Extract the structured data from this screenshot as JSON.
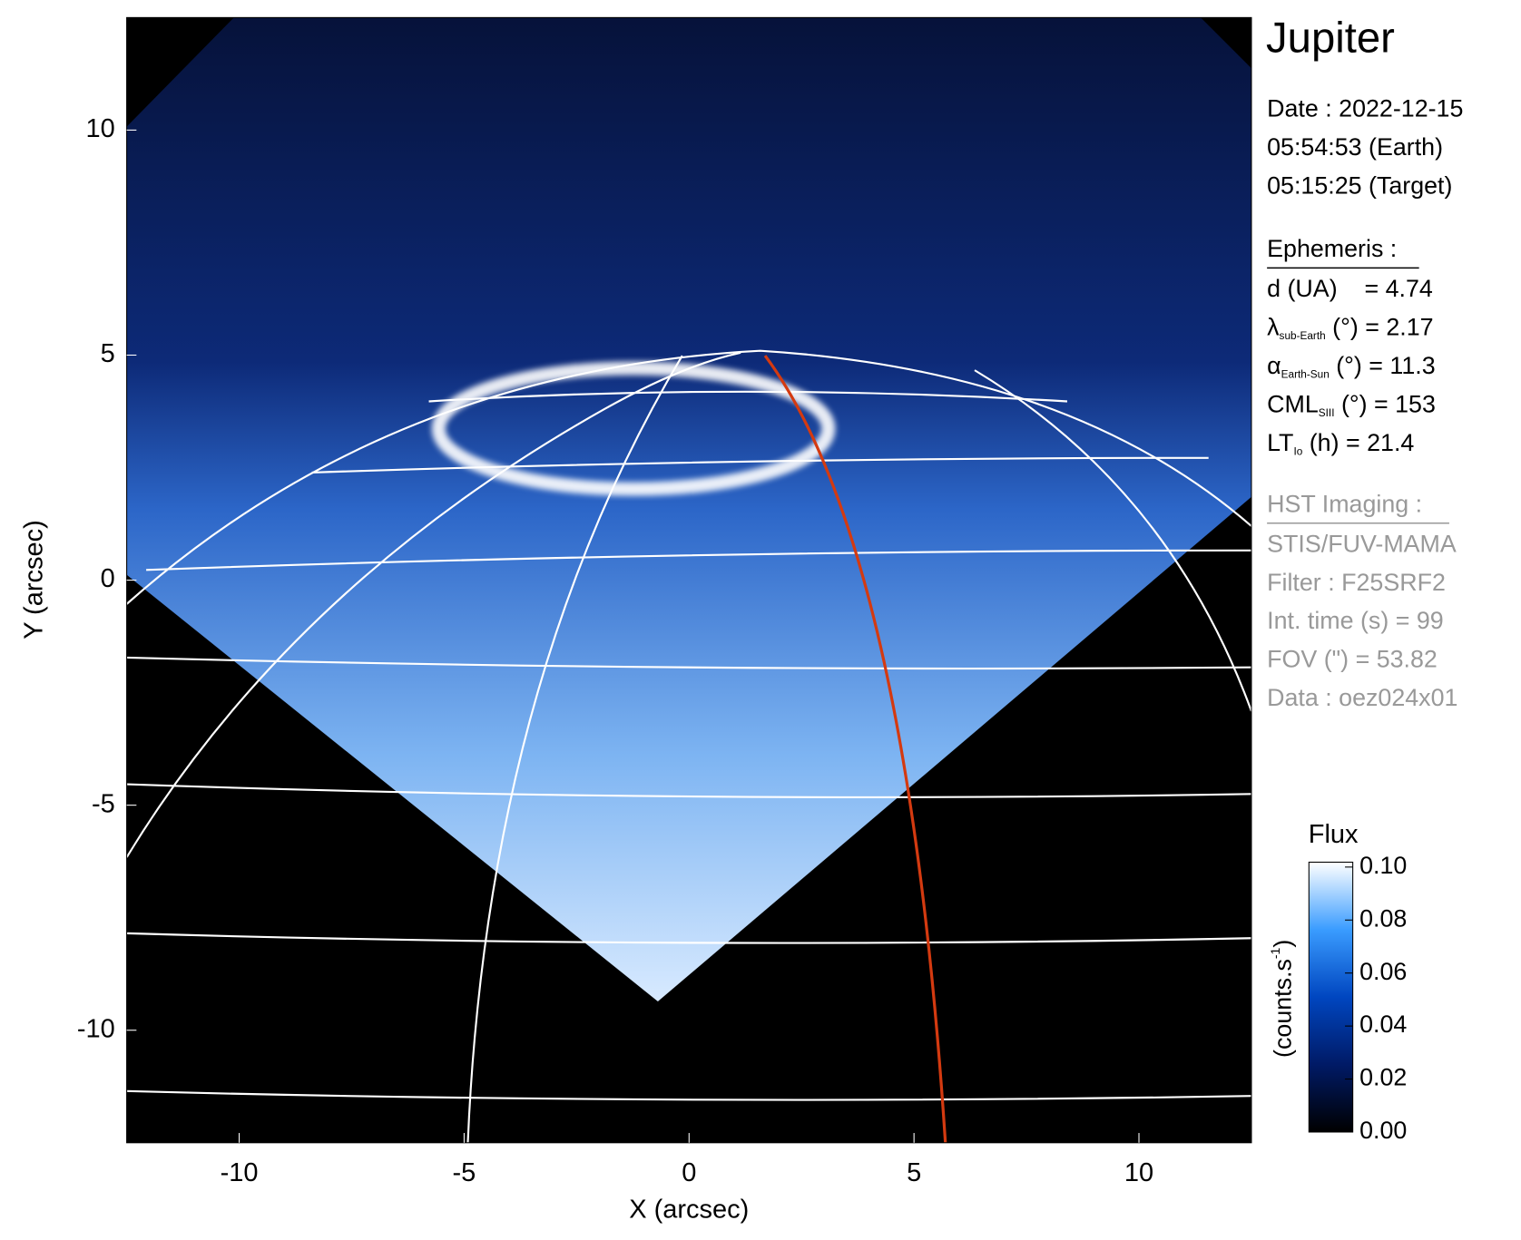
{
  "chart_data": {
    "type": "image",
    "title": "Jupiter",
    "xlabel": "X (arcsec)",
    "ylabel": "Y (arcsec)",
    "xlim": [
      -12.5,
      12.5
    ],
    "ylim": [
      -12.5,
      12.5
    ],
    "xticks": [
      -10,
      -5,
      0,
      5,
      10
    ],
    "yticks": [
      -10,
      -5,
      0,
      5,
      10
    ],
    "info_lines": [
      "Date : 2022-12-15",
      "05:54:53 (Earth)",
      "05:15:25 (Target)"
    ],
    "ephemeris": {
      "heading": "Ephemeris :",
      "lines": [
        {
          "main": "d (UA)    = 4.74"
        },
        {
          "main": "λ",
          "sub": "sub-Earth",
          "rest": " (°) = 2.17"
        },
        {
          "main": "α",
          "sub": "Earth-Sun",
          "rest": " (°) = 11.3"
        },
        {
          "main": "CML",
          "sub": "SIII",
          "rest": " (°) = 153"
        },
        {
          "main": "LT",
          "sub": "Io",
          "rest": " (h) = 21.4"
        }
      ]
    },
    "instrument": {
      "heading": "HST Imaging :",
      "lines": [
        "STIS/FUV-MAMA",
        "Filter : F25SRF2",
        "Int. time (s) = 99",
        "FOV (\") = 53.82",
        "Data : oez024x01"
      ]
    },
    "colorbar": {
      "title": "Flux",
      "label": {
        "main": "(counts.s",
        "sup": "-1",
        "rest": ")"
      },
      "lim": [
        0,
        0.1
      ],
      "ticks": [
        {
          "value": 0,
          "label": "0.00"
        },
        {
          "value": 0.02,
          "label": "0.02"
        },
        {
          "value": 0.04,
          "label": "0.04"
        },
        {
          "value": 0.06,
          "label": "0.06"
        },
        {
          "value": 0.08,
          "label": "0.08"
        },
        {
          "value": 0.1,
          "label": "0.10"
        }
      ],
      "colors": [
        "#000000",
        "#001a66",
        "#0046c0",
        "#3a9cff",
        "#ffffff"
      ]
    }
  }
}
